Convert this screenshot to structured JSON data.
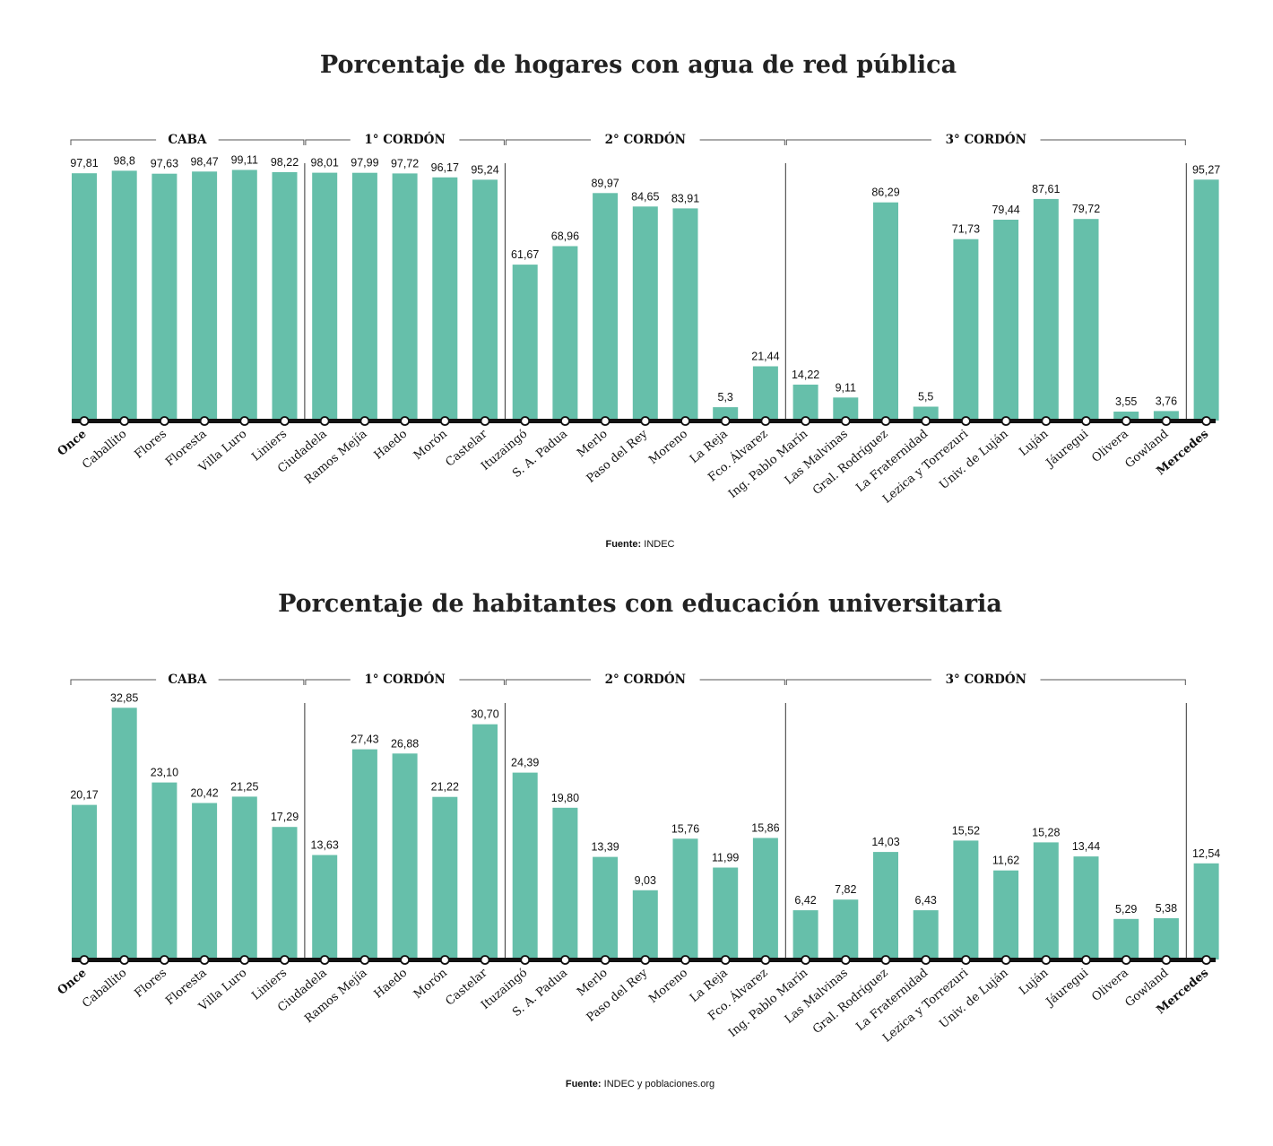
{
  "chart_data": [
    {
      "type": "bar",
      "title": "Porcentaje de hogares con agua de red pública",
      "categories": [
        "Once",
        "Caballito",
        "Flores",
        "Floresta",
        "Villa Luro",
        "Liniers",
        "Ciudadela",
        "Ramos Mejía",
        "Haedo",
        "Morón",
        "Castelar",
        "Ituzaingó",
        "S. A. Padua",
        "Merlo",
        "Paso del Rey",
        "Moreno",
        "La Reja",
        "Fco. Álvarez",
        "Ing. Pablo Marín",
        "Las Malvinas",
        "Gral. Rodríguez",
        "La Fraternidad",
        "Lezica y Torrezuri",
        "Univ. de Luján",
        "Luján",
        "Jáuregui",
        "Olivera",
        "Gowland",
        "Mercedes"
      ],
      "bold_categories": [
        "Once",
        "Mercedes"
      ],
      "values": [
        97.81,
        98.8,
        97.63,
        98.47,
        99.11,
        98.22,
        98.01,
        97.99,
        97.72,
        96.17,
        95.24,
        61.67,
        68.96,
        89.97,
        84.65,
        83.91,
        5.3,
        21.44,
        14.22,
        9.11,
        86.29,
        5.5,
        71.73,
        79.44,
        87.61,
        79.72,
        3.55,
        3.76,
        95.27
      ],
      "value_labels": [
        "97,81",
        "98,8",
        "97,63",
        "98,47",
        "99,11",
        "98,22",
        "98,01",
        "97,99",
        "97,72",
        "96,17",
        "95,24",
        "61,67",
        "68,96",
        "89,97",
        "84,65",
        "83,91",
        "5,3",
        "21,44",
        "14,22",
        "9,11",
        "86,29",
        "5,5",
        "71,73",
        "79,44",
        "87,61",
        "79,72",
        "3,55",
        "3,76",
        "95,27"
      ],
      "groups": [
        {
          "label": "CABA",
          "start": 0,
          "end": 5
        },
        {
          "label": "1° CORDÓN",
          "start": 6,
          "end": 10
        },
        {
          "label": "2° CORDÓN",
          "start": 11,
          "end": 17
        },
        {
          "label": "3° CORDÓN",
          "start": 18,
          "end": 27
        }
      ],
      "ylim": [
        0,
        100
      ],
      "source_key": "Fuente:",
      "source_text": "INDEC",
      "bar_color": "#66bfaa",
      "axis_color": "#111111"
    },
    {
      "type": "bar",
      "title": "Porcentaje de habitantes con educación universitaria",
      "categories": [
        "Once",
        "Caballito",
        "Flores",
        "Floresta",
        "Villa Luro",
        "Liniers",
        "Ciudadela",
        "Ramos Mejía",
        "Haedo",
        "Morón",
        "Castelar",
        "Ituzaingó",
        "S. A. Padua",
        "Merlo",
        "Paso del Rey",
        "Moreno",
        "La Reja",
        "Fco. Álvarez",
        "Ing. Pablo Marín",
        "Las Malvinas",
        "Gral. Rodríguez",
        "La Fraternidad",
        "Lezica y Torrezuri",
        "Univ. de Luján",
        "Luján",
        "Jáuregui",
        "Olivera",
        "Gowland",
        "Mercedes"
      ],
      "bold_categories": [
        "Once",
        "Mercedes"
      ],
      "values": [
        20.17,
        32.85,
        23.1,
        20.42,
        21.25,
        17.29,
        13.63,
        27.43,
        26.88,
        21.22,
        30.7,
        24.39,
        19.8,
        13.39,
        9.03,
        15.76,
        11.99,
        15.86,
        6.42,
        7.82,
        14.03,
        6.43,
        15.52,
        11.62,
        15.28,
        13.44,
        5.29,
        5.38,
        12.54
      ],
      "value_labels": [
        "20,17",
        "32,85",
        "23,10",
        "20,42",
        "21,25",
        "17,29",
        "13,63",
        "27,43",
        "26,88",
        "21,22",
        "30,70",
        "24,39",
        "19,80",
        "13,39",
        "9,03",
        "15,76",
        "11,99",
        "15,86",
        "6,42",
        "7,82",
        "14,03",
        "6,43",
        "15,52",
        "11,62",
        "15,28",
        "13,44",
        "5,29",
        "5,38",
        "12,54"
      ],
      "groups": [
        {
          "label": "CABA",
          "start": 0,
          "end": 5
        },
        {
          "label": "1° CORDÓN",
          "start": 6,
          "end": 10
        },
        {
          "label": "2° CORDÓN",
          "start": 11,
          "end": 17
        },
        {
          "label": "3° CORDÓN",
          "start": 18,
          "end": 27
        }
      ],
      "ylim": [
        0,
        33
      ],
      "source_key": "Fuente:",
      "source_text": "INDEC y poblaciones.org",
      "bar_color": "#66bfaa",
      "axis_color": "#111111"
    }
  ]
}
